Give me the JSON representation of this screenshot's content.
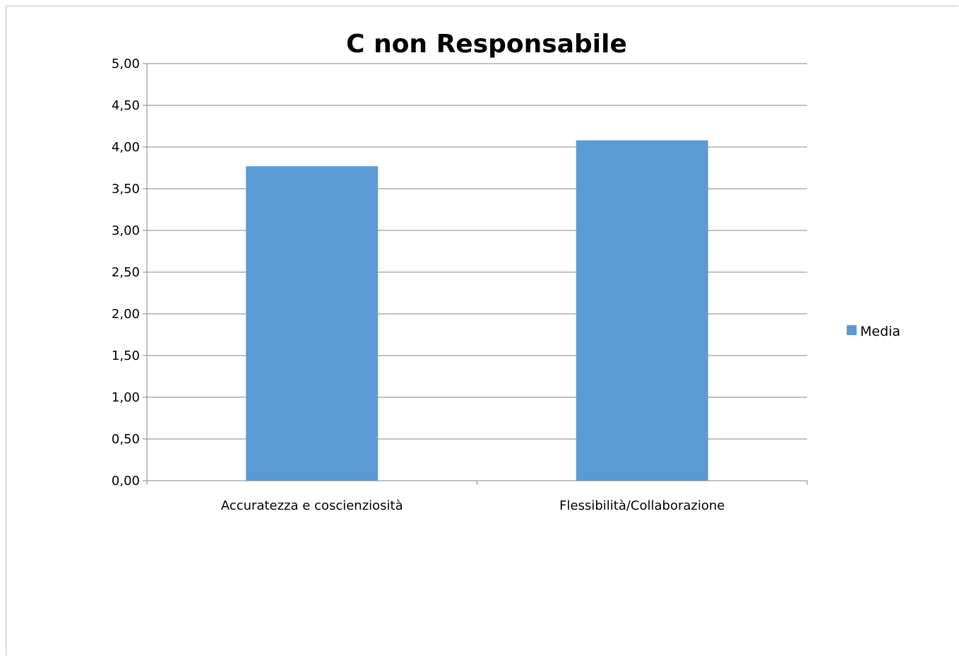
{
  "chart_data": {
    "type": "bar",
    "title": "C non Responsabile",
    "categories": [
      "Accuratezza e coscienziosità",
      "Flessibilità/Collaborazione"
    ],
    "series": [
      {
        "name": "Media",
        "values": [
          3.77,
          4.08
        ],
        "color": "#5b9bd5"
      }
    ],
    "ylim": [
      0,
      5
    ],
    "yticks": [
      0,
      0.5,
      1,
      1.5,
      2,
      2.5,
      3,
      3.5,
      4,
      4.5,
      5
    ],
    "ytick_labels": [
      "0,00",
      "0,50",
      "1,00",
      "1,50",
      "2,00",
      "2,50",
      "3,00",
      "3,50",
      "4,00",
      "4,50",
      "5,00"
    ],
    "grid": true,
    "legend_position": "right",
    "gridline_color": "#868686"
  }
}
